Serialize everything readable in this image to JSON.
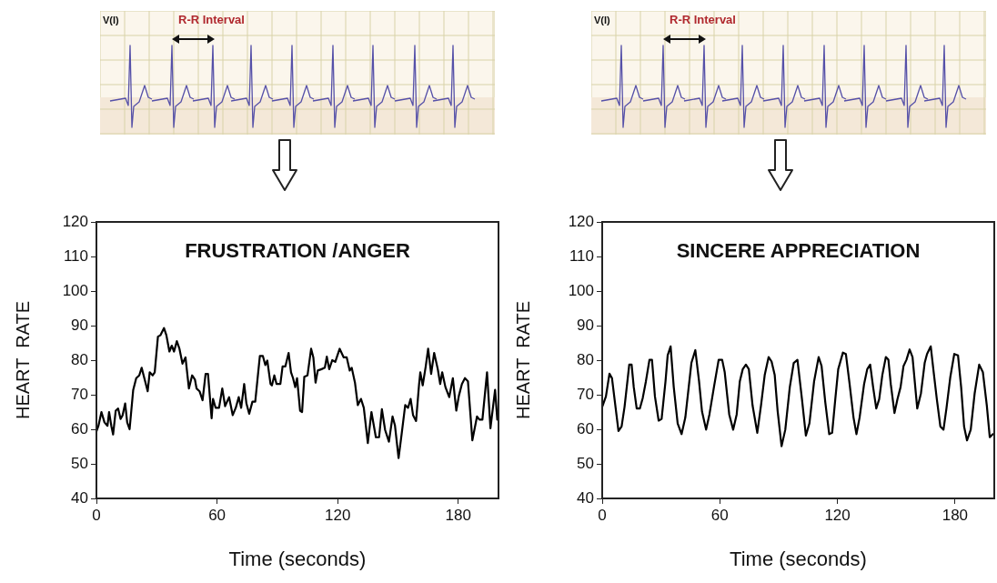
{
  "chart_data": [
    {
      "type": "line",
      "title": "FRUSTRATION /ANGER",
      "xlabel": "Time (seconds)",
      "ylabel": "HEART  RATE",
      "annotations": [
        "V(I)",
        "R-R Interval"
      ],
      "xlim": [
        0,
        200
      ],
      "ylim": [
        40,
        120
      ],
      "xticks": [
        0,
        60,
        120,
        180
      ],
      "yticks": [
        40,
        50,
        60,
        70,
        80,
        90,
        100,
        110,
        120
      ],
      "marker": "none",
      "line_style": "solid",
      "series": [
        {
          "color": "#000000",
          "x": [
            0,
            1,
            2.5,
            4,
            5.5,
            6.3,
            7.4,
            8.3,
            9.6,
            10.8,
            12,
            13,
            14.3,
            15.3,
            16.5,
            18.3,
            19.8,
            21.3,
            22.5,
            24,
            25.5,
            26.5,
            28,
            29,
            30.6,
            31.8,
            33.6,
            34.8,
            36.3,
            37.5,
            38.6,
            40,
            41.3,
            42.8,
            44.3,
            46,
            47.6,
            49,
            49.8,
            51.3,
            52.8,
            54.3,
            55.5,
            57.3,
            58,
            59.3,
            61,
            62.6,
            64,
            66,
            67.8,
            69.3,
            70.8,
            72,
            73.5,
            74.6,
            76,
            77.6,
            79,
            81.3,
            82.8,
            84,
            85,
            86.6,
            87.3,
            88.5,
            89.6,
            91.5,
            92.6,
            94,
            95.6,
            96.8,
            97.8,
            98.9,
            99.8,
            101.3,
            102.3,
            103.4,
            105,
            106.8,
            107.9,
            109,
            110.1,
            112,
            113.6,
            114.6,
            115.8,
            117.3,
            118.8,
            121,
            123,
            124.5,
            126,
            127,
            128.6,
            130,
            131.6,
            133,
            135,
            136.8,
            139,
            140.6,
            142,
            143.6,
            145.5,
            147.3,
            148.5,
            150.3,
            151.8,
            153.6,
            155,
            156.3,
            157.5,
            159,
            160.5,
            161.1,
            162.3,
            163.8,
            165,
            166.5,
            168,
            169.8,
            171,
            172,
            173.6,
            175.5,
            177.3,
            179,
            180.3,
            181.8,
            183.3,
            184.8,
            187,
            189.3,
            190.5,
            192,
            194.3,
            196,
            198.3,
            199.4
          ],
          "values": [
            59.4,
            61,
            65,
            62,
            61,
            65,
            61,
            58.5,
            65.4,
            66,
            63,
            64,
            67.5,
            62,
            60,
            71.4,
            74.8,
            75.6,
            77.8,
            74.4,
            71,
            76.5,
            75.6,
            76.5,
            86.8,
            87.2,
            89.3,
            87.2,
            82.5,
            84.2,
            82.5,
            85.5,
            83.3,
            79,
            80.8,
            71.8,
            75.6,
            74.4,
            71.8,
            71,
            68.4,
            76,
            76,
            63.2,
            68.8,
            66.2,
            66.2,
            71.8,
            66.7,
            69.3,
            64.1,
            66.2,
            69.3,
            66.2,
            73.1,
            67.5,
            64.5,
            68,
            68,
            81.2,
            81.2,
            78.6,
            79.9,
            73.1,
            72.7,
            75.6,
            73.1,
            73.1,
            78.2,
            78.2,
            82.1,
            76.5,
            74.8,
            72.2,
            74.8,
            65.4,
            65,
            75.2,
            75.6,
            83.3,
            80.8,
            73.5,
            77,
            77.4,
            77.8,
            81,
            77.4,
            80,
            79.5,
            83.3,
            80.8,
            80.8,
            77,
            77.8,
            73.5,
            67,
            68.8,
            66.2,
            56,
            65,
            57.7,
            57.7,
            65.8,
            59.8,
            56.4,
            63.7,
            61.1,
            51.7,
            58.5,
            67,
            66.2,
            68.8,
            64.1,
            62.4,
            73.1,
            76.5,
            72.7,
            78.2,
            83.3,
            76,
            82.1,
            77.4,
            73.1,
            76.5,
            72.2,
            69.3,
            74.8,
            65.4,
            69.7,
            73.1,
            74.8,
            73.9,
            56.8,
            63.7,
            62.8,
            62.8,
            76.5,
            60.3,
            71.4,
            62.8
          ]
        }
      ]
    },
    {
      "type": "line",
      "title": "SINCERE APPRECIATION",
      "xlabel": "Time (seconds)",
      "ylabel": "HEART  RATE",
      "annotations": [
        "V(I)",
        "R-R Interval"
      ],
      "xlim": [
        0,
        200
      ],
      "ylim": [
        40,
        120
      ],
      "xticks": [
        0,
        60,
        120,
        180
      ],
      "yticks": [
        40,
        50,
        60,
        70,
        80,
        90,
        100,
        110,
        120
      ],
      "marker": "none",
      "line_style": "solid",
      "series": [
        {
          "color": "#000000",
          "x": [
            0,
            1.9,
            3.7,
            5,
            6.5,
            8.3,
            9.9,
            11.4,
            13.8,
            15,
            16.1,
            17.6,
            19.2,
            20.7,
            22.3,
            24.1,
            25.4,
            26.9,
            28.8,
            30.3,
            32.3,
            33.4,
            34.9,
            36.5,
            38.5,
            40.5,
            42.4,
            45.5,
            47.5,
            49.4,
            50.9,
            53,
            54.7,
            57,
            59.4,
            61.2,
            62.5,
            64.8,
            66.8,
            68.6,
            70.2,
            71.7,
            73.3,
            74.8,
            76.7,
            79.1,
            81,
            82.9,
            84.9,
            86.4,
            88,
            89.5,
            91.5,
            93.4,
            95.7,
            97.7,
            99.6,
            101.9,
            103.9,
            105.7,
            108.1,
            110.4,
            111.9,
            113.8,
            115.8,
            117.3,
            118.9,
            120.4,
            122.8,
            124.3,
            126.2,
            128.2,
            129.7,
            131.3,
            133.6,
            135.2,
            136.7,
            138.2,
            139.8,
            141.3,
            142.9,
            144.7,
            146,
            147.2,
            149.1,
            150.6,
            152.2,
            153.7,
            155.2,
            156.8,
            158.3,
            160.7,
            162.6,
            164.5,
            165.7,
            167.6,
            169.1,
            170.7,
            172.5,
            174.1,
            175.6,
            177.6,
            179.6,
            181.5,
            183.1,
            184.6,
            186.1,
            188,
            190,
            192.3,
            194.2,
            196.2,
            197.7,
            199.3
          ],
          "values": [
            66.5,
            69.5,
            76.1,
            74.8,
            67.8,
            59.5,
            60.8,
            66.5,
            78.7,
            78.7,
            72.2,
            66,
            66,
            69.1,
            73.9,
            80.1,
            80.1,
            69.5,
            62.5,
            63,
            73.9,
            81.4,
            84,
            72.2,
            61.7,
            58.6,
            63.4,
            79.2,
            82.9,
            73.9,
            65.2,
            59.9,
            64.3,
            72.2,
            80.1,
            80.1,
            76.5,
            64.3,
            59.9,
            64.3,
            73.9,
            77.4,
            78.7,
            77.4,
            66.9,
            59,
            66.9,
            75.7,
            80.9,
            79.6,
            75.7,
            65.2,
            55.1,
            59.9,
            72.2,
            79.2,
            80.1,
            68.7,
            58.2,
            61.7,
            73.9,
            80.9,
            78.3,
            67.8,
            58.6,
            59,
            68.7,
            77.4,
            82.2,
            81.8,
            73.1,
            63.4,
            58.6,
            63.4,
            73.1,
            77.4,
            78.7,
            72.2,
            66,
            68.7,
            75.7,
            80.9,
            80.1,
            73.1,
            64.7,
            68.7,
            72.2,
            78.3,
            80.1,
            83.1,
            80.9,
            66,
            70.4,
            79.2,
            81.8,
            84,
            76.5,
            68.7,
            60.8,
            59.9,
            66,
            75.2,
            81.8,
            81.4,
            72.2,
            60.8,
            56.8,
            59.9,
            70.4,
            78.7,
            76.5,
            66.9,
            57.7,
            58.6
          ]
        }
      ]
    }
  ]
}
